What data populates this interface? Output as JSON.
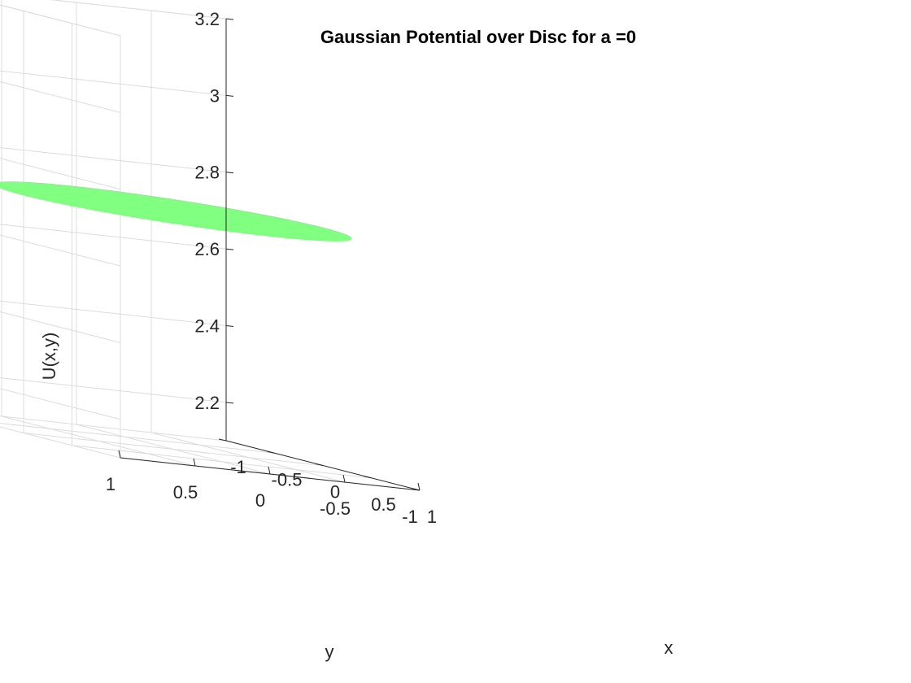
{
  "chart_data": {
    "type": "surface",
    "title": "Gaussian Potential over Disc for a =0",
    "xlabel": "x",
    "ylabel": "y",
    "zlabel": "U(x,y)",
    "xlim": [
      -1,
      1
    ],
    "ylim": [
      -1,
      1
    ],
    "zlim": [
      2.1,
      3.2
    ],
    "x_ticks": [
      "-1",
      "-0.5",
      "0",
      "0.5",
      "1"
    ],
    "y_ticks": [
      "-1",
      "-0.5",
      "0",
      "0.5",
      "1"
    ],
    "z_ticks": [
      "2.2",
      "2.4",
      "2.6",
      "2.8",
      "3",
      "3.2"
    ],
    "grid": true,
    "surface": {
      "shape": "disc",
      "radius": 1,
      "value": 2.72,
      "color": "#80ff80"
    }
  },
  "colors": {
    "grid": "#dcdcdc",
    "axis": "#262626",
    "surface": "#80ff80"
  }
}
